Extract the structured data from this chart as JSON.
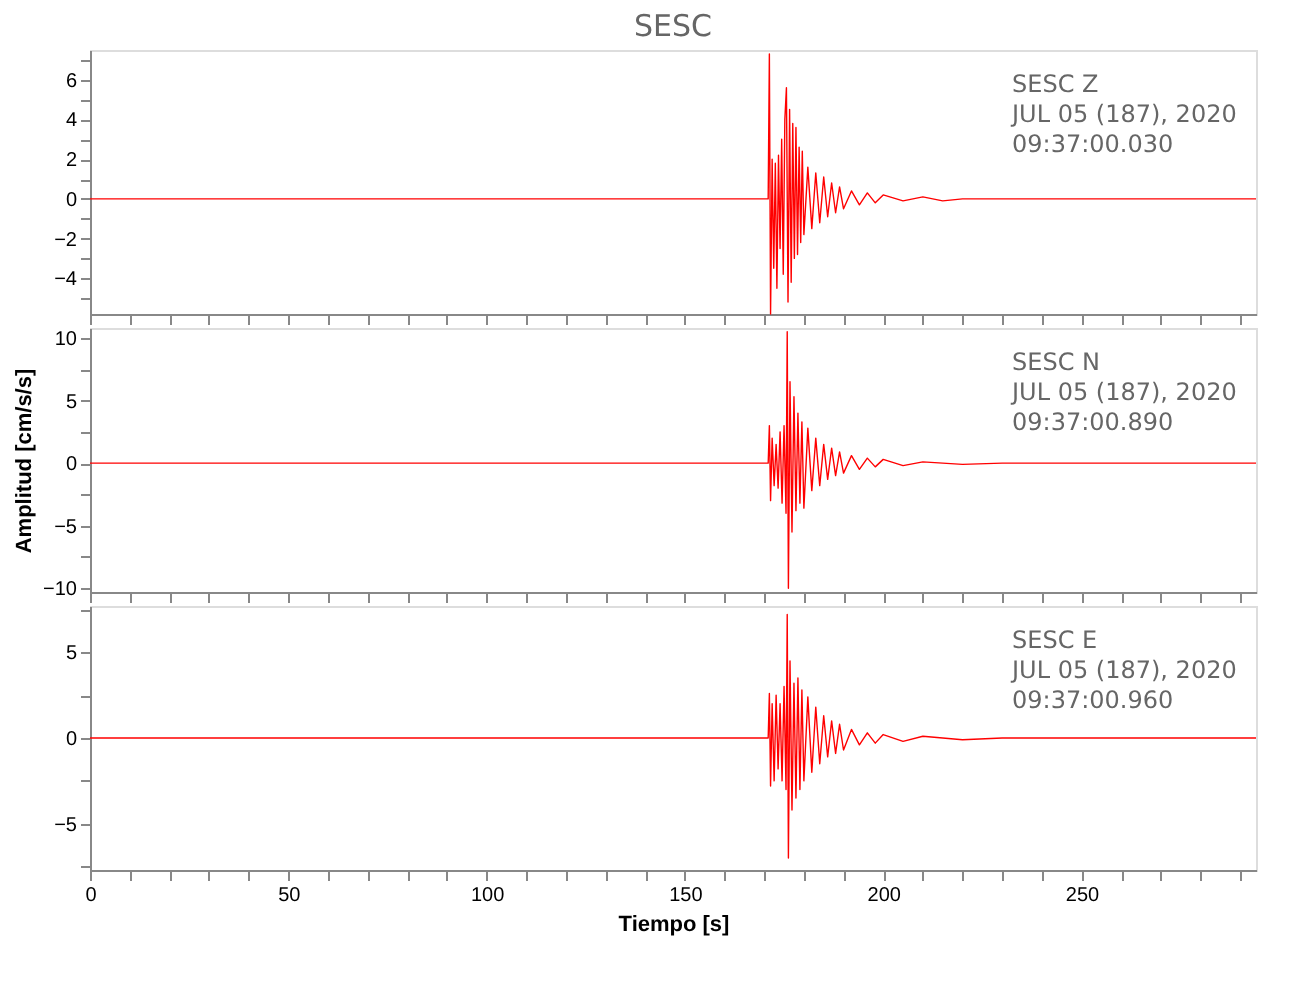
{
  "chart_data": [
    {
      "type": "line",
      "title": "SESC",
      "tick_labels": "y",
      "annotations": [
        "SESC   Z",
        "JUL 05 (187), 2020",
        "09:37:00.030"
      ],
      "x": [
        0,
        50,
        100,
        150,
        171.0,
        171.3,
        171.6,
        172.0,
        172.4,
        172.8,
        173.2,
        173.6,
        174.0,
        174.4,
        174.8,
        175.2,
        175.6,
        176.0,
        176.4,
        176.8,
        177.2,
        177.6,
        178.0,
        178.4,
        178.8,
        179.2,
        179.6,
        180.0,
        181,
        182,
        183,
        184,
        185,
        186,
        187,
        188,
        189,
        190,
        192,
        194,
        196,
        198,
        200,
        205,
        210,
        215,
        220,
        294
      ],
      "series": [
        {
          "color": "#ff0000",
          "values": [
            0,
            0,
            0,
            0,
            0,
            7.3,
            -5.8,
            2.0,
            -3.5,
            1.8,
            -4.5,
            2.2,
            -2.5,
            3.0,
            -3.8,
            4.0,
            5.6,
            -5.2,
            4.5,
            -4.2,
            3.8,
            -3.0,
            3.6,
            -2.8,
            2.6,
            -2.2,
            2.4,
            -1.8,
            1.6,
            -1.5,
            1.3,
            -1.2,
            1.1,
            -0.9,
            0.8,
            -0.7,
            0.6,
            -0.5,
            0.4,
            -0.3,
            0.3,
            -0.2,
            0.2,
            -0.1,
            0.1,
            -0.1,
            0,
            0
          ]
        }
      ],
      "xlim": [
        0,
        294
      ],
      "xticks": [
        0,
        {
          "value": 10,
          "label": null
        },
        {
          "value": 20,
          "label": null
        },
        {
          "value": 30,
          "label": null
        },
        {
          "value": 40,
          "label": null
        },
        50,
        {
          "value": 60,
          "label": null
        },
        {
          "value": 70,
          "label": null
        },
        {
          "value": 80,
          "label": null
        },
        {
          "value": 90,
          "label": null
        },
        100,
        {
          "value": 110,
          "label": null
        },
        {
          "value": 120,
          "label": null
        },
        {
          "value": 130,
          "label": null
        },
        {
          "value": 140,
          "label": null
        },
        150,
        {
          "value": 160,
          "label": null
        },
        {
          "value": 170,
          "label": null
        },
        {
          "value": 180,
          "label": null
        },
        {
          "value": 190,
          "label": null
        },
        200,
        {
          "value": 210,
          "label": null
        },
        {
          "value": 220,
          "label": null
        },
        {
          "value": 230,
          "label": null
        },
        {
          "value": 240,
          "label": null
        },
        250,
        {
          "value": 260,
          "label": null
        },
        {
          "value": 270,
          "label": null
        },
        {
          "value": 280,
          "label": null
        },
        {
          "value": 290,
          "label": null
        }
      ],
      "ylim": [
        -5.8,
        7.5
      ],
      "yticks": [
        {
          "value": -5,
          "label": null
        },
        {
          "value": -4,
          "label": "−4"
        },
        {
          "value": -3,
          "label": null
        },
        {
          "value": -2,
          "label": "−2"
        },
        {
          "value": -1,
          "label": null
        },
        0,
        {
          "value": 1,
          "label": null
        },
        2,
        {
          "value": 3,
          "label": null
        },
        4,
        {
          "value": 5,
          "label": null
        },
        6,
        {
          "value": 7,
          "label": null
        }
      ]
    },
    {
      "type": "line",
      "ylabel": "Amplitud [cm/s/s]",
      "tick_labels": "y",
      "annotations": [
        "SESC   N",
        "JUL 05 (187), 2020",
        "09:37:00.890"
      ],
      "x": [
        0,
        50,
        100,
        150,
        171,
        171.3,
        171.6,
        172,
        172.5,
        173,
        173.5,
        174,
        174.5,
        175,
        175.5,
        175.8,
        176.1,
        176.5,
        177,
        177.5,
        178,
        178.5,
        179,
        179.5,
        180,
        181,
        182,
        183,
        184,
        185,
        186,
        187,
        188,
        189,
        190,
        192,
        194,
        196,
        198,
        200,
        205,
        210,
        220,
        230,
        294
      ],
      "series": [
        {
          "color": "#ff0000",
          "values": [
            0,
            0,
            0,
            0,
            0,
            3.0,
            -3.0,
            2.0,
            -1.8,
            1.5,
            -2.0,
            2.5,
            -3.2,
            3.0,
            -4.0,
            10.5,
            -10.0,
            6.5,
            -5.5,
            5.3,
            -3.8,
            4.0,
            -3.2,
            3.3,
            -3.6,
            2.8,
            -2.2,
            2.0,
            -1.8,
            1.5,
            -1.3,
            1.2,
            -1.0,
            0.9,
            -0.8,
            0.6,
            -0.5,
            0.4,
            -0.3,
            0.3,
            -0.2,
            0.1,
            -0.1,
            0,
            0
          ]
        }
      ],
      "xlim": [
        0,
        294
      ],
      "xticks": [
        0,
        {
          "value": 10,
          "label": null
        },
        {
          "value": 20,
          "label": null
        },
        {
          "value": 30,
          "label": null
        },
        {
          "value": 40,
          "label": null
        },
        50,
        {
          "value": 60,
          "label": null
        },
        {
          "value": 70,
          "label": null
        },
        {
          "value": 80,
          "label": null
        },
        {
          "value": 90,
          "label": null
        },
        100,
        {
          "value": 110,
          "label": null
        },
        {
          "value": 120,
          "label": null
        },
        {
          "value": 130,
          "label": null
        },
        {
          "value": 140,
          "label": null
        },
        150,
        {
          "value": 160,
          "label": null
        },
        {
          "value": 170,
          "label": null
        },
        {
          "value": 180,
          "label": null
        },
        {
          "value": 190,
          "label": null
        },
        200,
        {
          "value": 210,
          "label": null
        },
        {
          "value": 220,
          "label": null
        },
        {
          "value": 230,
          "label": null
        },
        {
          "value": 240,
          "label": null
        },
        250,
        {
          "value": 260,
          "label": null
        },
        {
          "value": 270,
          "label": null
        },
        {
          "value": 280,
          "label": null
        },
        {
          "value": 290,
          "label": null
        }
      ],
      "ylim": [
        -10.3,
        10.8
      ],
      "yticks": [
        {
          "value": -10,
          "label": "−10"
        },
        {
          "value": -7.5,
          "label": null
        },
        {
          "value": -5,
          "label": "−5"
        },
        {
          "value": -2.5,
          "label": null
        },
        0,
        {
          "value": 2.5,
          "label": null
        },
        5,
        {
          "value": 7.5,
          "label": null
        },
        10
      ]
    },
    {
      "type": "line",
      "xlabel": "Tiempo [s]",
      "annotations": [
        "SESC   E",
        "JUL 05 (187), 2020",
        "09:37:00.960"
      ],
      "x": [
        0,
        50,
        100,
        150,
        171,
        171.3,
        171.6,
        172,
        172.5,
        173,
        173.5,
        174,
        174.5,
        175,
        175.5,
        175.8,
        176.1,
        176.5,
        177,
        177.5,
        178,
        178.5,
        179,
        179.5,
        180,
        181,
        182,
        183,
        184,
        185,
        186,
        187,
        188,
        189,
        190,
        192,
        194,
        196,
        198,
        200,
        205,
        210,
        220,
        230,
        294
      ],
      "series": [
        {
          "color": "#ff0000",
          "values": [
            0,
            0,
            0,
            0,
            0,
            2.6,
            -2.8,
            2.0,
            -2.5,
            2.5,
            -1.8,
            2.0,
            -2.5,
            3.0,
            -3.0,
            7.2,
            -7.0,
            4.5,
            -4.2,
            3.2,
            -3.5,
            3.5,
            -3.0,
            2.8,
            -2.5,
            2.4,
            -2.0,
            1.8,
            -1.5,
            1.3,
            -1.1,
            1.0,
            -0.9,
            0.8,
            -0.7,
            0.5,
            -0.4,
            0.3,
            -0.3,
            0.2,
            -0.2,
            0.1,
            -0.1,
            0,
            0
          ]
        }
      ],
      "xlim": [
        0,
        294
      ],
      "xticks": [
        0,
        {
          "value": 10,
          "label": null
        },
        {
          "value": 20,
          "label": null
        },
        {
          "value": 30,
          "label": null
        },
        {
          "value": 40,
          "label": null
        },
        50,
        {
          "value": 60,
          "label": null
        },
        {
          "value": 70,
          "label": null
        },
        {
          "value": 80,
          "label": null
        },
        {
          "value": 90,
          "label": null
        },
        100,
        {
          "value": 110,
          "label": null
        },
        {
          "value": 120,
          "label": null
        },
        {
          "value": 130,
          "label": null
        },
        {
          "value": 140,
          "label": null
        },
        150,
        {
          "value": 160,
          "label": null
        },
        {
          "value": 170,
          "label": null
        },
        {
          "value": 180,
          "label": null
        },
        {
          "value": 190,
          "label": null
        },
        200,
        {
          "value": 210,
          "label": null
        },
        {
          "value": 220,
          "label": null
        },
        {
          "value": 230,
          "label": null
        },
        {
          "value": 240,
          "label": null
        },
        250,
        {
          "value": 260,
          "label": null
        },
        {
          "value": 270,
          "label": null
        },
        {
          "value": 280,
          "label": null
        },
        {
          "value": 290,
          "label": null
        }
      ],
      "ylim": [
        -7.7,
        7.7
      ],
      "yticks": [
        {
          "value": -7.5,
          "label": null
        },
        {
          "value": -5,
          "label": "−5"
        },
        {
          "value": -2.5,
          "label": null
        },
        0,
        {
          "value": 2.5,
          "label": null
        },
        5,
        {
          "value": 7.5,
          "label": null
        }
      ]
    }
  ]
}
